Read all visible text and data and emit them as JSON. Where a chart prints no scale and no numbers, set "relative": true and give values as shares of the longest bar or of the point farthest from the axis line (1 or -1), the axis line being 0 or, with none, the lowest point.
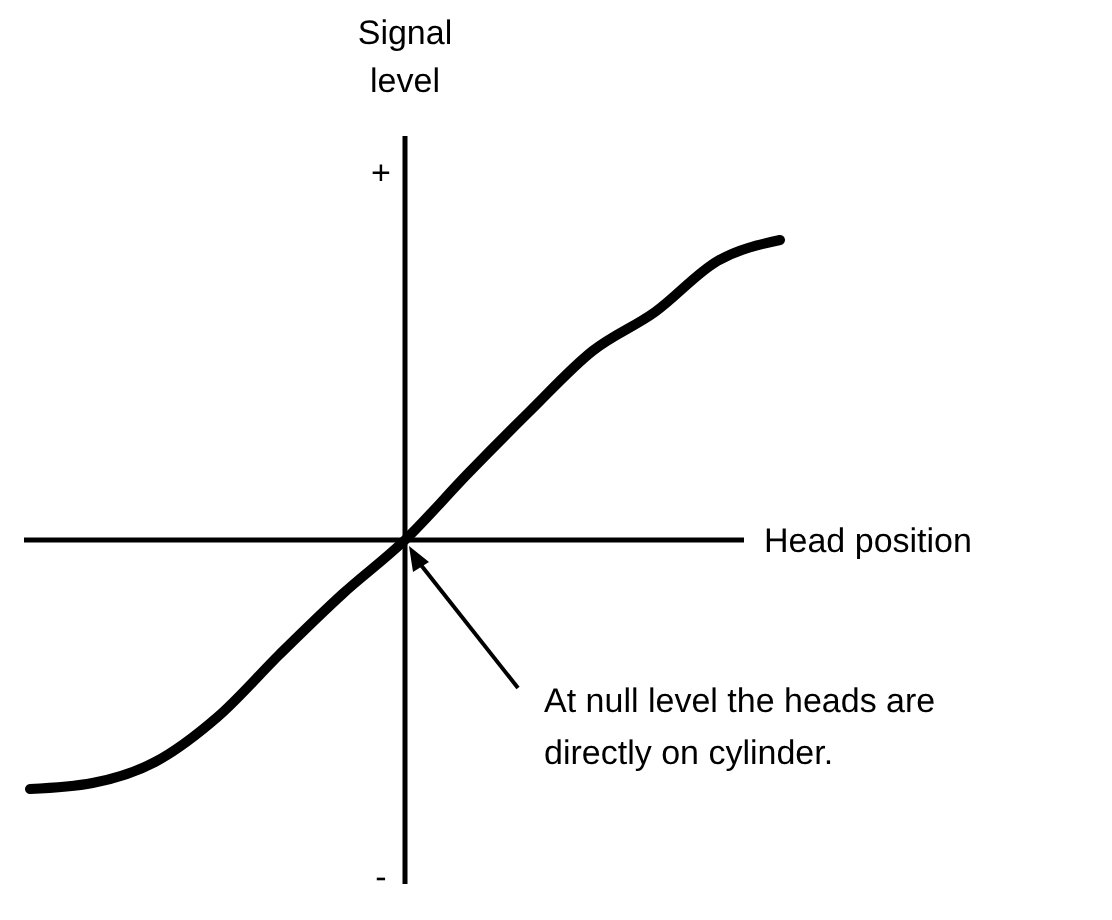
{
  "chart_data": {
    "type": "line",
    "relative": true,
    "xlabel": "Head position",
    "ylabel": "Signal level",
    "categories": [
      null,
      null,
      null,
      null,
      null,
      null,
      null,
      null,
      null,
      null,
      null,
      null,
      null
    ],
    "series": [
      {
        "color": "#000000",
        "values": [
          -0.83,
          -0.81,
          -0.74,
          -0.59,
          -0.38,
          -0.18,
          0,
          0.22,
          0.43,
          0.63,
          0.76,
          0.93,
          1
        ]
      }
    ],
    "annotations": [
      "+",
      "-",
      "At null level the heads are directly on cylinder."
    ],
    "marker": "none",
    "line_style": "solid"
  }
}
